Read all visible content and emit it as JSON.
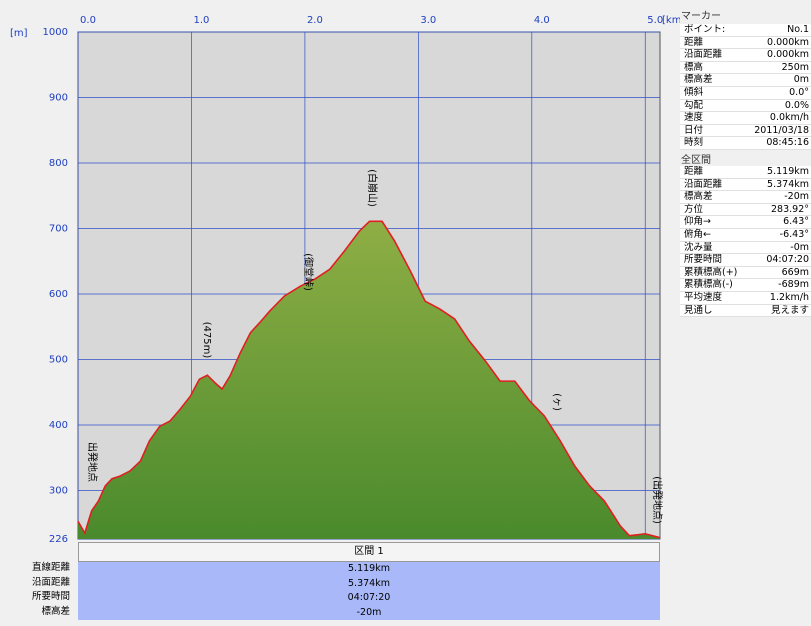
{
  "chart_data": {
    "type": "area",
    "x_unit": "[km]",
    "y_unit": "[m]",
    "x": [
      0,
      0.06,
      0.12,
      0.18,
      0.24,
      0.3,
      0.37,
      0.46,
      0.55,
      0.63,
      0.72,
      0.81,
      0.9,
      0.99,
      1.07,
      1.14,
      1.21,
      1.27,
      1.34,
      1.43,
      1.52,
      1.6,
      1.69,
      1.82,
      1.96,
      2.09,
      2.22,
      2.35,
      2.48,
      2.57,
      2.68,
      2.79,
      2.93,
      3.06,
      3.19,
      3.32,
      3.45,
      3.59,
      3.72,
      3.85,
      3.98,
      4.11,
      4.25,
      4.38,
      4.51,
      4.64,
      4.78,
      4.86,
      5.0,
      5.13
    ],
    "values": [
      253,
      235,
      269,
      284,
      307,
      318,
      322,
      330,
      345,
      376,
      398,
      406,
      424,
      444,
      470,
      476,
      464,
      455,
      475,
      510,
      541,
      556,
      574,
      597,
      612,
      623,
      638,
      666,
      696,
      711,
      711,
      681,
      635,
      589,
      577,
      562,
      528,
      498,
      467,
      467,
      437,
      414,
      376,
      337,
      307,
      284,
      246,
      231,
      234,
      228
    ],
    "color": "#e02020",
    "fill_top": "#8fae45",
    "fill_bottom": "#4a8a2c",
    "xlim": [
      0,
      5.13
    ],
    "ylim": [
      226,
      1000
    ],
    "xticks": [
      {
        "value": 0,
        "label": "0.0"
      },
      {
        "value": 1,
        "label": "1.0"
      },
      {
        "value": 2,
        "label": "2.0"
      },
      {
        "value": 3,
        "label": "3.0"
      },
      {
        "value": 4,
        "label": "4.0"
      },
      {
        "value": 5,
        "label": "5.0"
      }
    ],
    "yticks": [
      226,
      300,
      400,
      500,
      600,
      700,
      800,
      900,
      1000
    ],
    "grid": true,
    "annotations": [
      "出発地点",
      "(475m)",
      "(御堂峠)",
      "(白崩山)",
      "(ヶ)",
      "(出発地点)"
    ]
  },
  "marker_panel": {
    "title": "マーカー",
    "rows": [
      [
        "ポイント:",
        "No.1"
      ],
      [
        "距離",
        "0.000km"
      ],
      [
        "沿面距離",
        "0.000km"
      ],
      [
        "標高",
        "250m"
      ],
      [
        "標高差",
        "0m"
      ],
      [
        "傾斜",
        "0.0°"
      ],
      [
        "勾配",
        "0.0%"
      ],
      [
        "速度",
        "0.0km/h"
      ],
      [
        "日付",
        "2011/03/18"
      ],
      [
        "時刻",
        "08:45:16"
      ]
    ]
  },
  "total_panel": {
    "title": "全区間",
    "rows": [
      [
        "距離",
        "5.119km"
      ],
      [
        "沿面距離",
        "5.374km"
      ],
      [
        "標高差",
        "-20m"
      ],
      [
        "方位",
        "283.92°"
      ],
      [
        "仰角→",
        "6.43°"
      ],
      [
        "俯角←",
        "-6.43°"
      ],
      [
        "沈み量",
        "-0m"
      ],
      [
        "所要時間",
        "04:07:20"
      ],
      [
        "累積標高(+)",
        "669m"
      ],
      [
        "累積標高(-)",
        "-689m"
      ],
      [
        "平均速度",
        "1.2km/h"
      ],
      [
        "見通し",
        "見えます"
      ]
    ]
  },
  "section_table": {
    "header": "区間 1",
    "labels": [
      "直線距離",
      "沿面距離",
      "所要時間",
      "標高差"
    ],
    "values": [
      "5.119km",
      "5.374km",
      "04:07:20",
      "-20m"
    ]
  }
}
